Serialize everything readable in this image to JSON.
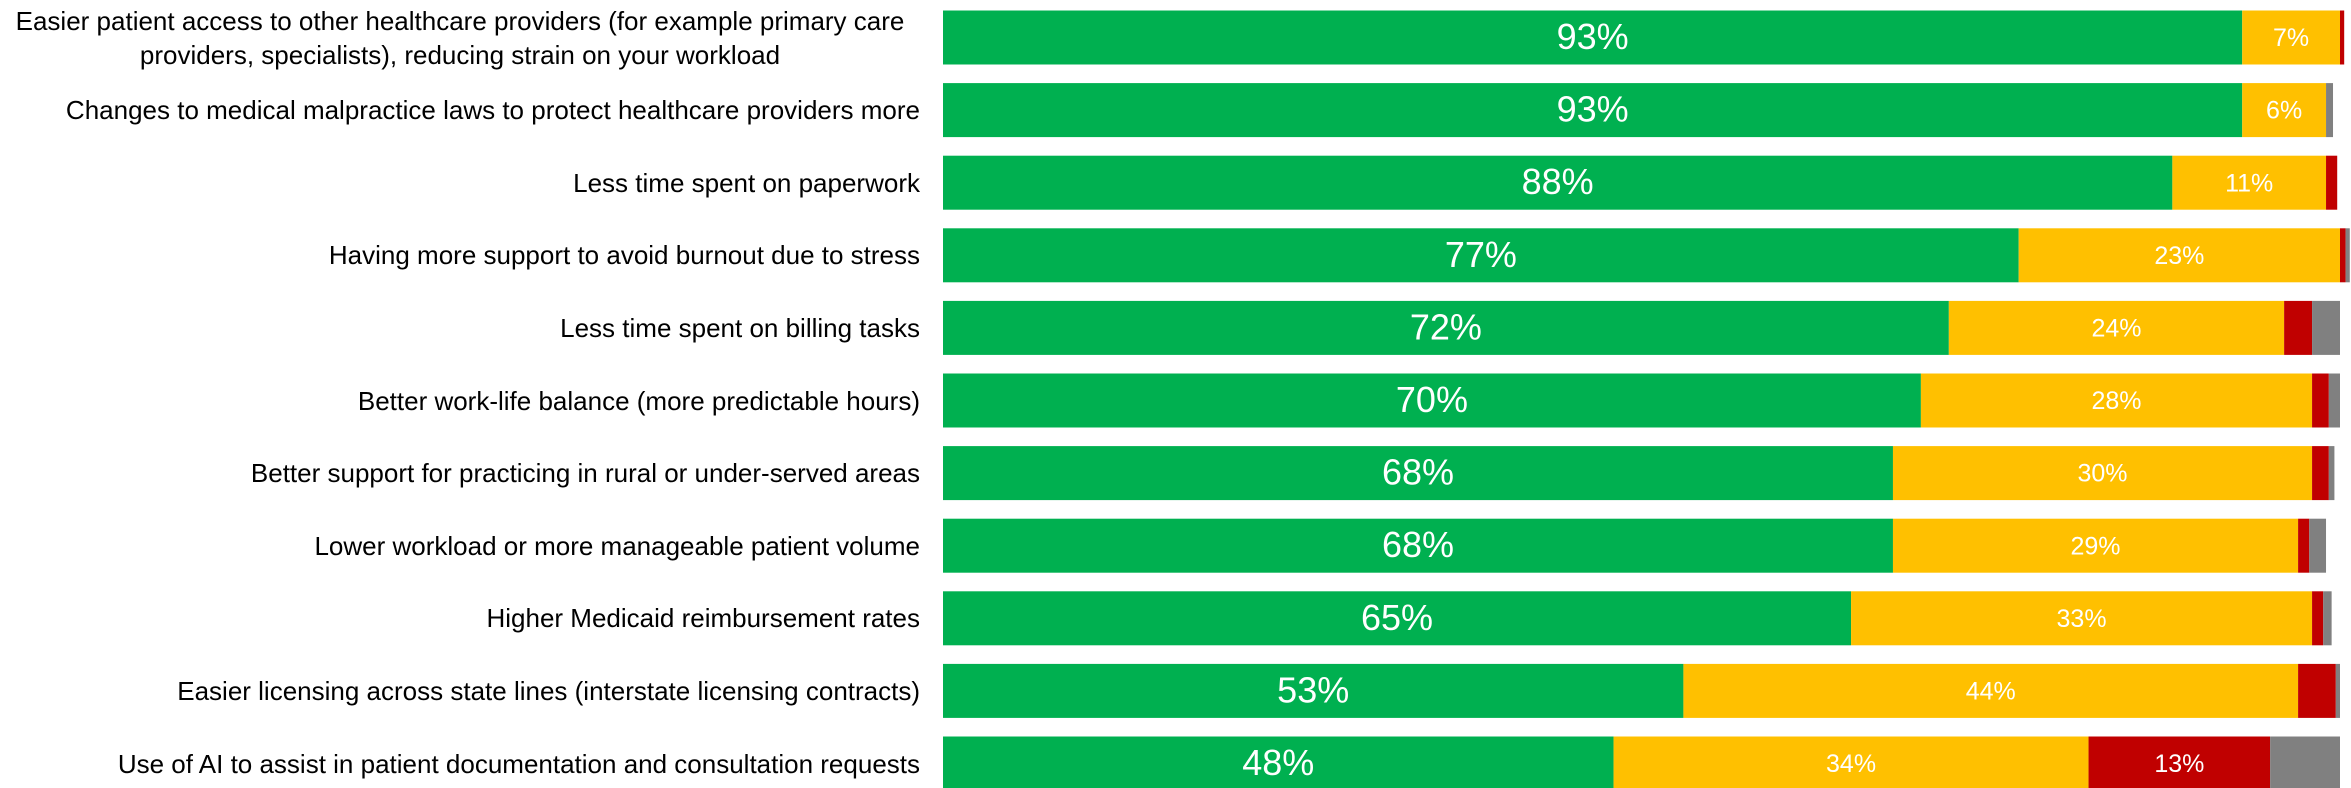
{
  "chart_data": {
    "type": "stacked-bar-horizontal",
    "categories": [
      "Easier patient access to other healthcare providers (for example primary care providers, specialists), reducing strain on your workload",
      "Changes to medical malpractice laws to protect healthcare providers more",
      "Less time spent on paperwork",
      "Having more support to avoid burnout due to stress",
      "Less time spent on billing tasks",
      "Better work-life balance (more predictable hours)",
      "Better support for practicing in rural or under-served areas",
      "Lower workload or more manageable patient volume",
      "Higher Medicaid reimbursement rates",
      "Easier licensing across state lines (interstate licensing contracts)",
      "Use of AI to assist in patient documentation and consultation requests"
    ],
    "series": [
      {
        "color": "#00b050",
        "values": [
          93,
          93,
          88,
          77,
          72,
          70,
          68,
          68,
          65,
          53,
          48
        ],
        "value_labels": [
          "93%",
          "93%",
          "88%",
          "77%",
          "72%",
          "70%",
          "68%",
          "68%",
          "65%",
          "53%",
          "48%"
        ]
      },
      {
        "color": "#ffc000",
        "values": [
          7,
          6,
          11,
          23,
          24,
          28,
          30,
          29,
          33,
          44,
          34
        ],
        "value_labels": [
          "7%",
          "6%",
          "11%",
          "23%",
          "24%",
          "28%",
          "30%",
          "29%",
          "33%",
          "44%",
          "34%"
        ]
      },
      {
        "color": "#c00000",
        "values": [
          0.3,
          0,
          0.8,
          0.4,
          2,
          1.2,
          1.2,
          0.8,
          0.8,
          2.7,
          13
        ],
        "value_labels": [
          null,
          null,
          null,
          null,
          null,
          null,
          null,
          null,
          null,
          null,
          "13%"
        ]
      },
      {
        "color": "#808080",
        "values": [
          0,
          0.5,
          0,
          0.3,
          2,
          0.8,
          0.4,
          1.2,
          0.6,
          0.3,
          5
        ]
      }
    ],
    "xlim": [
      0,
      100
    ]
  }
}
